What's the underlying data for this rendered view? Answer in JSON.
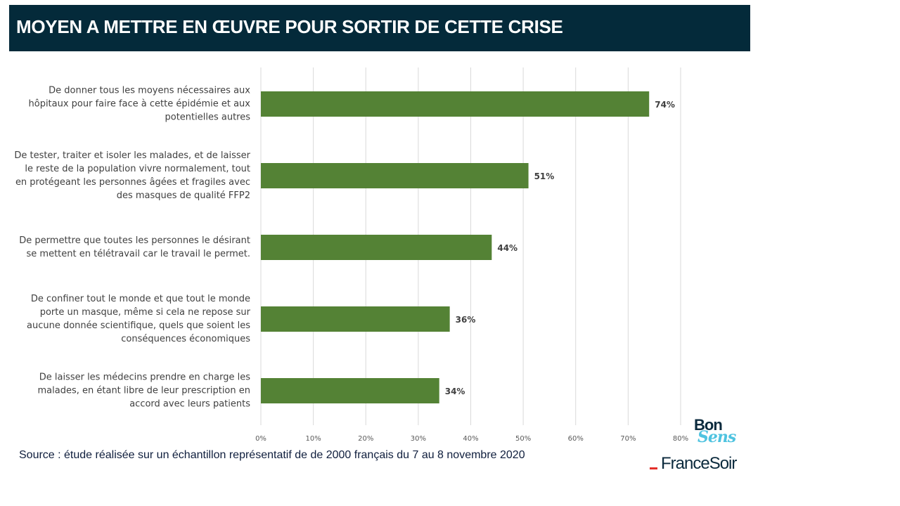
{
  "header": {
    "title": "MOYEN A METTRE EN ŒUVRE POUR SORTIR DE CETTE CRISE"
  },
  "chart_data": {
    "type": "bar",
    "orientation": "horizontal",
    "categories": [
      "De donner tous les moyens nécessaires aux hôpitaux pour faire face à cette épidémie et aux potentielles autres",
      "De tester, traiter et isoler les malades, et de laisser le reste de la population vivre normalement, tout en protégeant les personnes âgées et fragiles avec des masques de qualité FFP2",
      "De permettre que toutes les personnes le désirant se mettent en télétravail car le travail le permet.",
      "De confiner tout le monde et que tout le monde porte un masque, même si cela ne repose sur aucune donnée scientifique, quels que soient les conséquences économiques",
      "De laisser les médecins prendre en charge les malades, en étant libre de leur prescription en accord avec leurs patients"
    ],
    "label_lines": [
      [
        "De donner tous les moyens nécessaires aux",
        "hôpitaux pour faire face à cette épidémie et aux",
        "potentielles autres"
      ],
      [
        "De tester, traiter et isoler les malades, et de laisser",
        "le reste de la population vivre normalement, tout",
        "en protégeant les personnes âgées et fragiles avec",
        "des masques de qualité FFP2"
      ],
      [
        "De permettre que toutes les personnes le désirant",
        "se mettent en télétravail car le travail le permet."
      ],
      [
        "De confiner tout le monde et que tout le monde",
        "porte un masque, même si cela ne repose sur",
        "aucune donnée scientifique, quels que soient les",
        "conséquences économiques"
      ],
      [
        "De laisser les médecins prendre en charge les",
        "malades, en étant libre de leur prescription en",
        "accord avec leurs patients"
      ]
    ],
    "values": [
      74,
      51,
      44,
      36,
      34
    ],
    "value_labels": [
      "74%",
      "51%",
      "44%",
      "36%",
      "34%"
    ],
    "xlim": [
      0,
      80
    ],
    "xticks": [
      0,
      10,
      20,
      30,
      40,
      50,
      60,
      70,
      80
    ],
    "xtick_labels": [
      "0%",
      "10%",
      "20%",
      "30%",
      "40%",
      "50%",
      "60%",
      "70%",
      "80%"
    ],
    "grid": true,
    "bar_color": "#548235"
  },
  "source": "Source : étude réalisée sur un échantillon représentatif de de 2000 français du 7 au 8 novembre 2020",
  "logos": {
    "bonsens_bon": "Bon",
    "bonsens_sens": "Sens",
    "francesoir": "FranceSoir"
  }
}
